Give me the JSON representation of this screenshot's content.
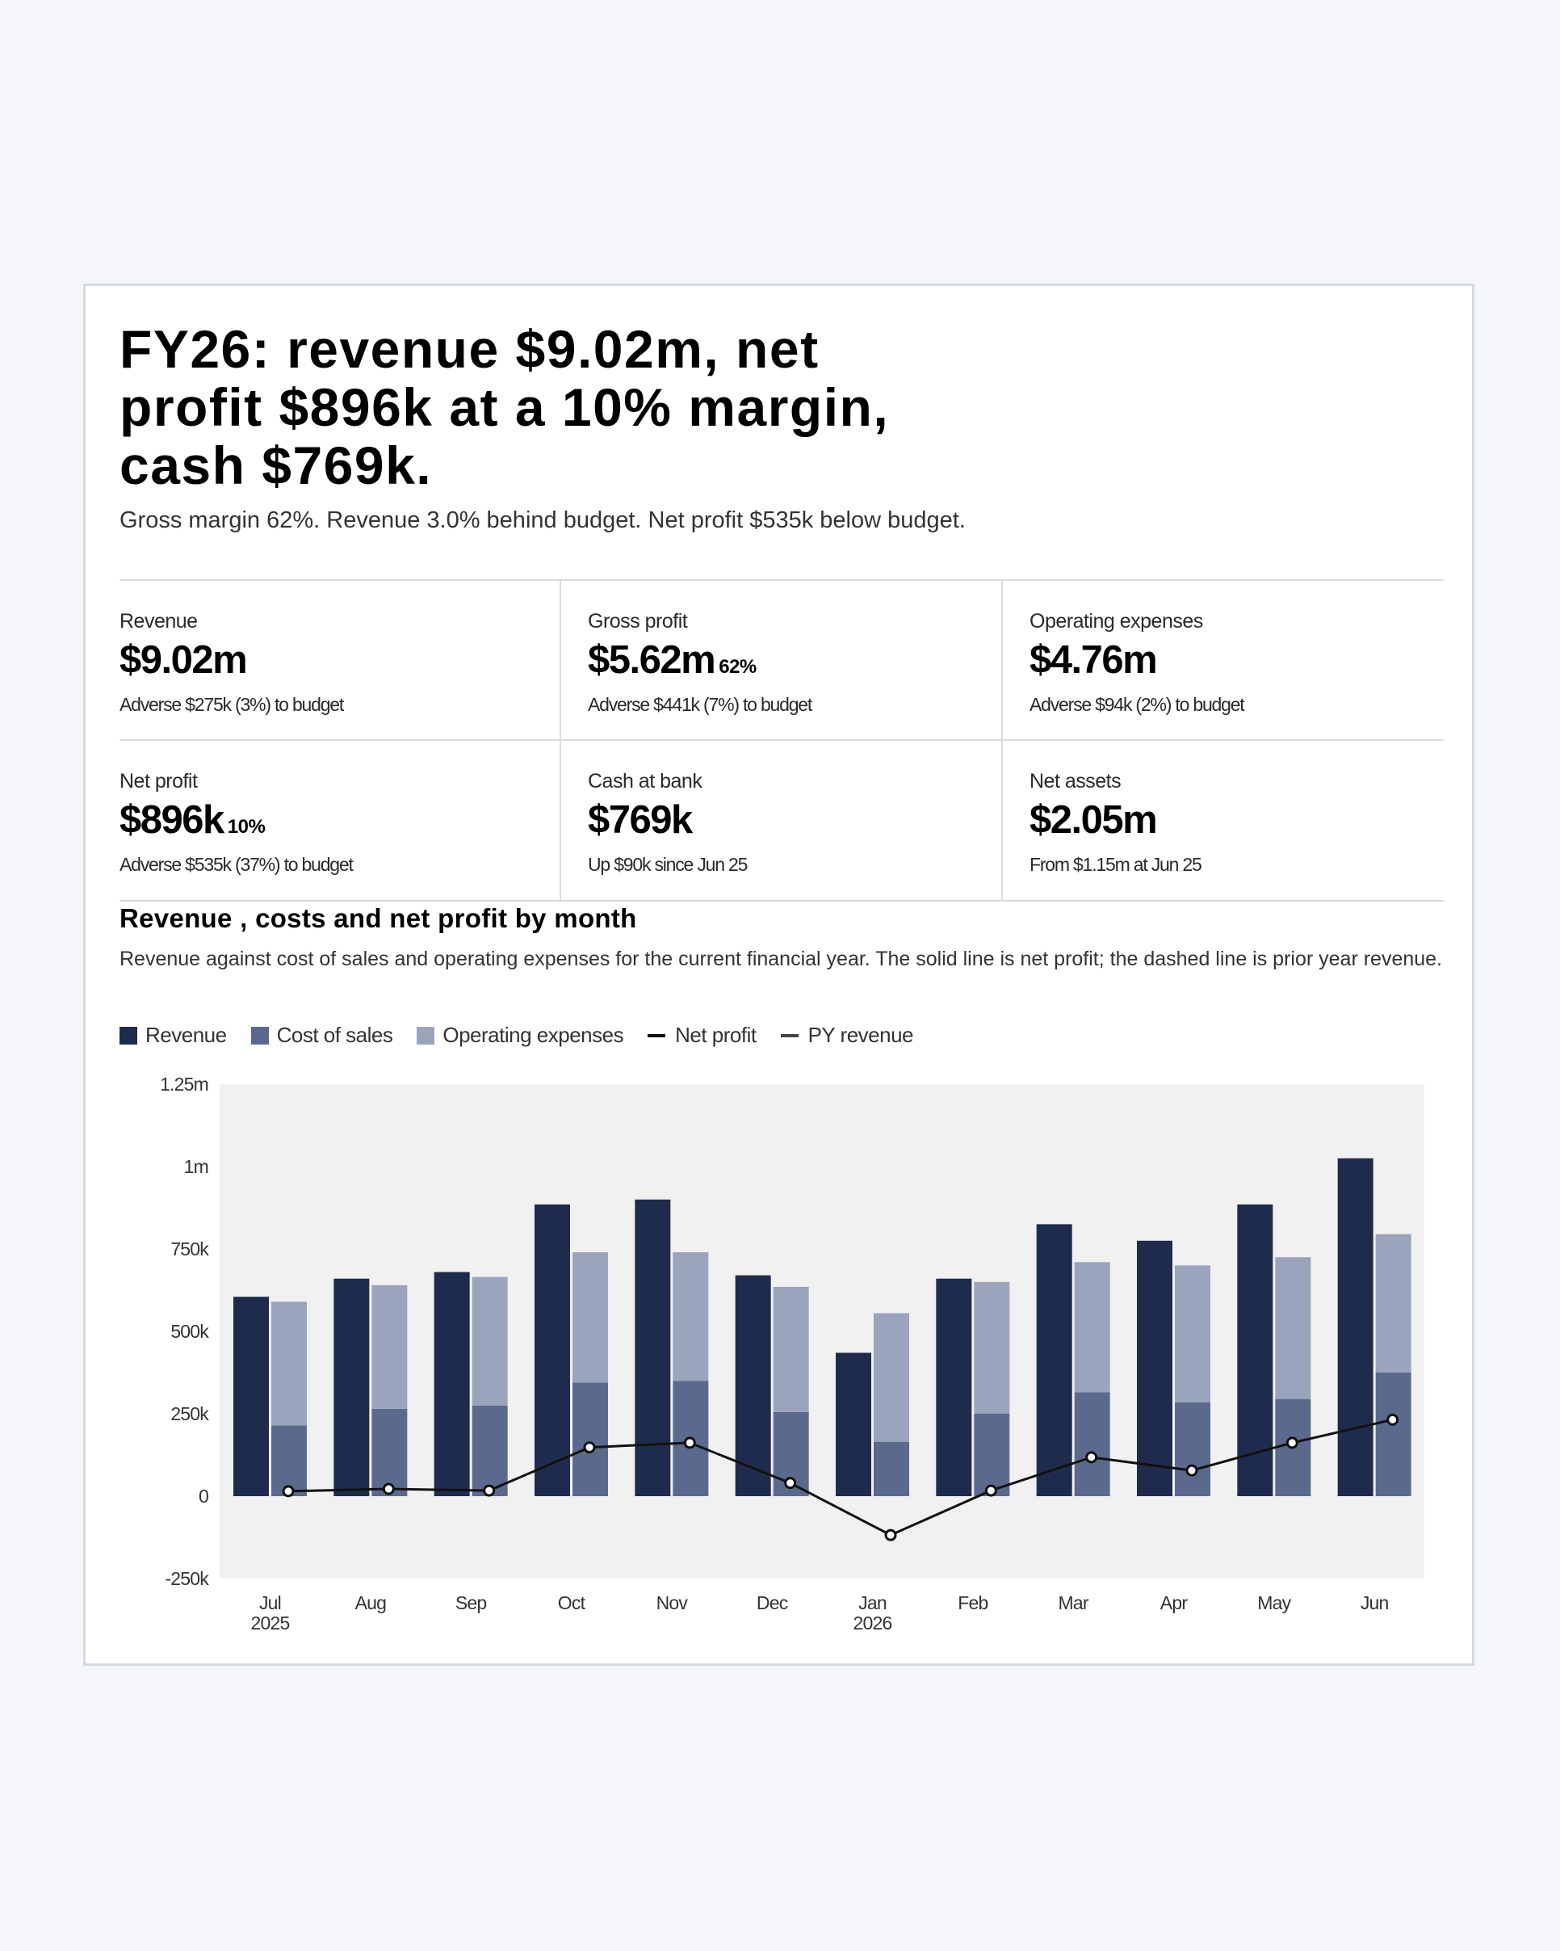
{
  "headline": "FY26: revenue $9.02m, net profit $896k at a 10% margin, cash $769k.",
  "subhead": "Gross margin 62%. Revenue 3.0% behind budget. Net profit $535k below budget.",
  "kpis": [
    {
      "label": "Revenue",
      "value": "$9.02m",
      "pct": "",
      "note": "Adverse $275k (3%) to budget"
    },
    {
      "label": "Gross profit",
      "value": "$5.62m",
      "pct": "62%",
      "note": "Adverse $441k (7%) to budget"
    },
    {
      "label": "Operating expenses",
      "value": "$4.76m",
      "pct": "",
      "note": "Adverse $94k (2%) to budget"
    },
    {
      "label": "Net profit",
      "value": "$896k",
      "pct": "10%",
      "note": "Adverse $535k (37%) to budget"
    },
    {
      "label": "Cash at bank",
      "value": "$769k",
      "pct": "",
      "note": "Up $90k since Jun 25"
    },
    {
      "label": "Net assets",
      "value": "$2.05m",
      "pct": "",
      "note": "From $1.15m at Jun 25"
    }
  ],
  "colors": {
    "revenue": "#1f2b4d",
    "cost_of_sales": "#5b6a8c",
    "operating_expenses": "#9aa4bc",
    "net_profit": "#111111",
    "py_revenue": "#444444",
    "plot_bg": "#f1f1f1"
  },
  "chart_data": {
    "type": "bar",
    "title": "Revenue , costs and net profit by month",
    "subtitle": "Revenue against cost of sales and operating expenses for the current financial year. The solid line is net profit; the dashed line is prior year revenue.",
    "legend": [
      "Revenue",
      "Cost of sales",
      "Operating expenses",
      "Net profit",
      "PY revenue"
    ],
    "legend_placement": "top-left",
    "categories": [
      "Jul",
      "Aug",
      "Sep",
      "Oct",
      "Nov",
      "Dec",
      "Jan",
      "Feb",
      "Mar",
      "Apr",
      "May",
      "Jun"
    ],
    "category_years": {
      "Jul": "2025",
      "Jan": "2026"
    },
    "y_ticks": [
      "1.25m",
      "1m",
      "750k",
      "500k",
      "250k",
      "0",
      "-250k"
    ],
    "ylim": [
      -250000,
      1250000
    ],
    "series": [
      {
        "name": "Revenue",
        "values": [
          605000,
          660000,
          680000,
          885000,
          900000,
          670000,
          435000,
          660000,
          825000,
          775000,
          885000,
          1025000
        ]
      },
      {
        "name": "Cost of sales",
        "values": [
          215000,
          265000,
          275000,
          345000,
          350000,
          255000,
          165000,
          250000,
          315000,
          285000,
          295000,
          375000
        ]
      },
      {
        "name": "Operating expenses",
        "values": [
          375000,
          375000,
          390000,
          395000,
          390000,
          380000,
          390000,
          400000,
          395000,
          415000,
          430000,
          420000
        ]
      },
      {
        "name": "Net profit",
        "values": [
          15000,
          22000,
          17000,
          148000,
          162000,
          40000,
          -118000,
          17000,
          118000,
          78000,
          162000,
          232000
        ]
      }
    ],
    "grid": false
  }
}
